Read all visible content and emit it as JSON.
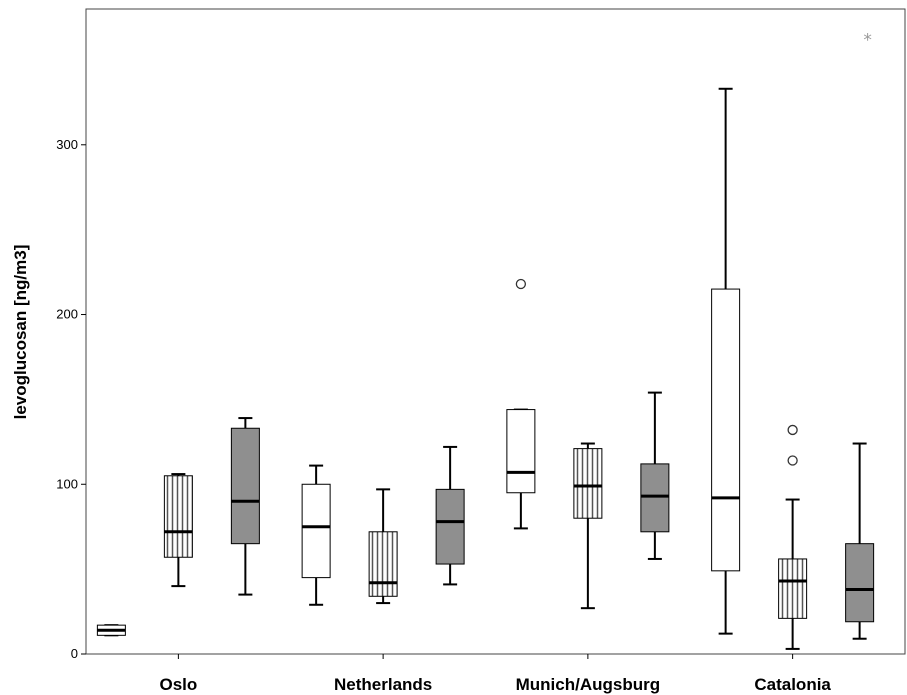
{
  "chart_data": {
    "type": "boxplot",
    "ylabel": "levoglucosan [ng/m3]",
    "xlabel": "",
    "ylim": [
      0,
      380
    ],
    "yticks": [
      0,
      100,
      200,
      300
    ],
    "categories": [
      "Oslo",
      "Netherlands",
      "Munich/Augsburg",
      "Catalonia"
    ],
    "fill_styles": {
      "white": "#ffffff",
      "striped": "vertical-stripes",
      "gray": "#8f8f8f"
    },
    "boxes": [
      {
        "category": "Oslo",
        "style": "white",
        "whisker_low": 11,
        "q1": 11,
        "median": 14,
        "q3": 17,
        "whisker_high": 17,
        "outliers": [],
        "extremes": []
      },
      {
        "category": "Oslo",
        "style": "striped",
        "whisker_low": 40,
        "q1": 57,
        "median": 72,
        "q3": 105,
        "whisker_high": 106,
        "outliers": [],
        "extremes": []
      },
      {
        "category": "Oslo",
        "style": "gray",
        "whisker_low": 35,
        "q1": 65,
        "median": 90,
        "q3": 133,
        "whisker_high": 139,
        "outliers": [],
        "extremes": []
      },
      {
        "category": "Netherlands",
        "style": "white",
        "whisker_low": 29,
        "q1": 45,
        "median": 75,
        "q3": 100,
        "whisker_high": 111,
        "outliers": [],
        "extremes": []
      },
      {
        "category": "Netherlands",
        "style": "striped",
        "whisker_low": 30,
        "q1": 34,
        "median": 42,
        "q3": 72,
        "whisker_high": 97,
        "outliers": [],
        "extremes": []
      },
      {
        "category": "Netherlands",
        "style": "gray",
        "whisker_low": 41,
        "q1": 53,
        "median": 78,
        "q3": 97,
        "whisker_high": 122,
        "outliers": [],
        "extremes": []
      },
      {
        "category": "Munich/Augsburg",
        "style": "white",
        "whisker_low": 74,
        "q1": 95,
        "median": 107,
        "q3": 144,
        "whisker_high": 144,
        "outliers": [
          218
        ],
        "extremes": []
      },
      {
        "category": "Munich/Augsburg",
        "style": "striped",
        "whisker_low": 27,
        "q1": 80,
        "median": 99,
        "q3": 121,
        "whisker_high": 124,
        "outliers": [],
        "extremes": []
      },
      {
        "category": "Munich/Augsburg",
        "style": "gray",
        "whisker_low": 56,
        "q1": 72,
        "median": 93,
        "q3": 112,
        "whisker_high": 154,
        "outliers": [],
        "extremes": []
      },
      {
        "category": "Catalonia",
        "style": "white",
        "whisker_low": 12,
        "q1": 49,
        "median": 92,
        "q3": 215,
        "whisker_high": 333,
        "outliers": [],
        "extremes": []
      },
      {
        "category": "Catalonia",
        "style": "striped",
        "whisker_low": 3,
        "q1": 21,
        "median": 43,
        "q3": 56,
        "whisker_high": 91,
        "outliers": [
          114,
          132
        ],
        "extremes": []
      },
      {
        "category": "Catalonia",
        "style": "gray",
        "whisker_low": 9,
        "q1": 19,
        "median": 38,
        "q3": 65,
        "whisker_high": 124,
        "outliers": [],
        "extremes": [
          362
        ]
      }
    ]
  }
}
